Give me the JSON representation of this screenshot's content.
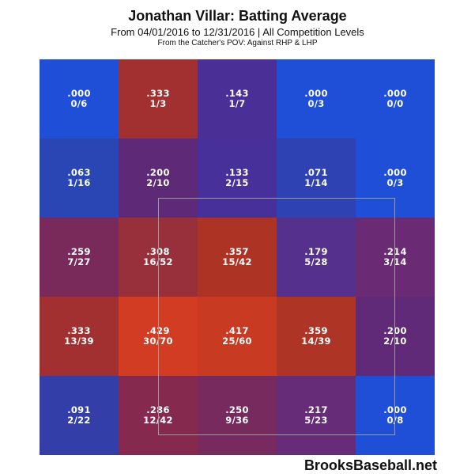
{
  "header": {
    "title": "Jonathan Villar: Batting Average",
    "subtitle": "From 04/01/2016 to 12/31/2016 | All Competition Levels",
    "subtitle2": "From the Catcher's POV:  Against RHP & LHP"
  },
  "watermark": "BrooksBaseball.net",
  "chart_data": {
    "type": "heatmap",
    "rows": 5,
    "cols": 5,
    "strike_zone": {
      "row_start": 1,
      "row_end": 3,
      "col_start": 1,
      "col_end": 3
    },
    "cells": [
      [
        {
          "avg": ".000",
          "hits": "0/6",
          "color": "#1f4fd6"
        },
        {
          "avg": ".333",
          "hits": "1/3",
          "color": "#a23030"
        },
        {
          "avg": ".143",
          "hits": "1/7",
          "color": "#4a3096"
        },
        {
          "avg": ".000",
          "hits": "0/3",
          "color": "#1f4fd6"
        },
        {
          "avg": ".000",
          "hits": "0/0",
          "color": "#1f4fd6"
        }
      ],
      [
        {
          "avg": ".063",
          "hits": "1/16",
          "color": "#2a45b4"
        },
        {
          "avg": ".200",
          "hits": "2/10",
          "color": "#5e2a78"
        },
        {
          "avg": ".133",
          "hits": "2/15",
          "color": "#48309a"
        },
        {
          "avg": ".071",
          "hits": "1/14",
          "color": "#2f42b4"
        },
        {
          "avg": ".000",
          "hits": "0/3",
          "color": "#1f4fd6"
        }
      ],
      [
        {
          "avg": ".259",
          "hits": "7/27",
          "color": "#7a2a5a"
        },
        {
          "avg": ".308",
          "hits": "16/52",
          "color": "#98303c"
        },
        {
          "avg": ".357",
          "hits": "15/42",
          "color": "#ad3424"
        },
        {
          "avg": ".179",
          "hits": "5/28",
          "color": "#55308c"
        },
        {
          "avg": ".214",
          "hits": "3/14",
          "color": "#6a2a74"
        }
      ],
      [
        {
          "avg": ".333",
          "hits": "13/39",
          "color": "#a33030"
        },
        {
          "avg": ".429",
          "hits": "30/70",
          "color": "#d23c22"
        },
        {
          "avg": ".417",
          "hits": "25/60",
          "color": "#c83a22"
        },
        {
          "avg": ".359",
          "hits": "14/39",
          "color": "#ae3426"
        },
        {
          "avg": ".200",
          "hits": "2/10",
          "color": "#602a78"
        }
      ],
      [
        {
          "avg": ".091",
          "hits": "2/22",
          "color": "#333ea8"
        },
        {
          "avg": ".286",
          "hits": "12/42",
          "color": "#852a4e"
        },
        {
          "avg": ".250",
          "hits": "9/36",
          "color": "#762a5e"
        },
        {
          "avg": ".217",
          "hits": "5/23",
          "color": "#662c78"
        },
        {
          "avg": ".000",
          "hits": "0/8",
          "color": "#1f4fd6"
        }
      ]
    ]
  }
}
